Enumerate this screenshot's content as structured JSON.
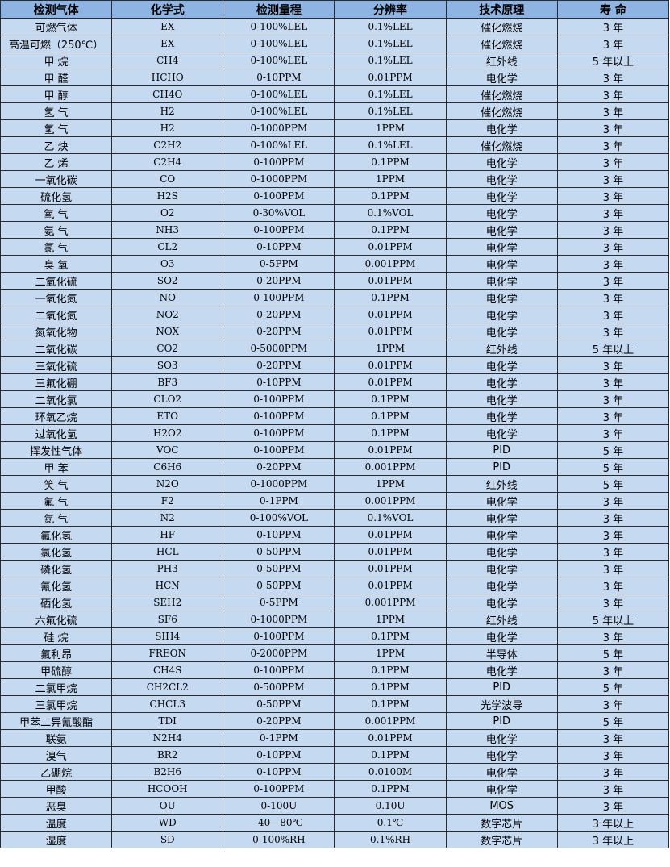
{
  "colors": {
    "header_bg": "#8db4e2",
    "cell_bg": "#c5d9f1",
    "border": "#2b2b2b"
  },
  "table": {
    "headers": [
      "检测气体",
      "化学式",
      "检测量程",
      "分辨率",
      "技术原理",
      "寿 命"
    ],
    "rows": [
      [
        "可燃气体",
        "EX",
        "0-100%LEL",
        "0.1%LEL",
        "催化燃烧",
        "3 年"
      ],
      [
        "高温可燃（250℃）",
        "EX",
        "0-100%LEL",
        "0.1%LEL",
        "催化燃烧",
        "3 年"
      ],
      [
        "甲 烷",
        "CH4",
        "0-100%LEL",
        "0.1%LEL",
        "红外线",
        "5 年以上"
      ],
      [
        "甲 醛",
        "HCHO",
        "0-10PPM",
        "0.01PPM",
        "电化学",
        "3 年"
      ],
      [
        "甲 醇",
        "CH4O",
        "0-100%LEL",
        "0.1%LEL",
        "催化燃烧",
        "3 年"
      ],
      [
        "氢 气",
        "H2",
        "0-100%LEL",
        "0.1%LEL",
        "催化燃烧",
        "3 年"
      ],
      [
        "氢 气",
        "H2",
        "0-1000PPM",
        "1PPM",
        "电化学",
        "3 年"
      ],
      [
        "乙 炔",
        "C2H2",
        "0-100%LEL",
        "0.1%LEL",
        "催化燃烧",
        "3 年"
      ],
      [
        "乙 烯",
        "C2H4",
        "0-100PPM",
        "0.1PPM",
        "电化学",
        "3 年"
      ],
      [
        "一氧化碳",
        "CO",
        "0-1000PPM",
        "1PPM",
        "电化学",
        "3 年"
      ],
      [
        "硫化氢",
        "H2S",
        "0-100PPM",
        "0.1PPM",
        "电化学",
        "3 年"
      ],
      [
        "氧 气",
        "O2",
        "0-30%VOL",
        "0.1%VOL",
        "电化学",
        "3 年"
      ],
      [
        "氨 气",
        "NH3",
        "0-100PPM",
        "0.1PPM",
        "电化学",
        "3 年"
      ],
      [
        "氯 气",
        "CL2",
        "0-10PPM",
        "0.01PPM",
        "电化学",
        "3 年"
      ],
      [
        "臭 氧",
        "O3",
        "0-5PPM",
        "0.001PPM",
        "电化学",
        "3 年"
      ],
      [
        "二氧化硫",
        "SO2",
        "0-20PPM",
        "0.01PPM",
        "电化学",
        "3 年"
      ],
      [
        "一氧化氮",
        "NO",
        "0-100PPM",
        "0.1PPM",
        "电化学",
        "3 年"
      ],
      [
        "二氧化氮",
        "NO2",
        "0-20PPM",
        "0.01PPM",
        "电化学",
        "3 年"
      ],
      [
        "氮氧化物",
        "NOX",
        "0-20PPM",
        "0.01PPM",
        "电化学",
        "3 年"
      ],
      [
        "二氧化碳",
        "CO2",
        "0-5000PPM",
        "1PPM",
        "红外线",
        "5 年以上"
      ],
      [
        "三氧化硫",
        "SO3",
        "0-20PPM",
        "0.01PPM",
        "电化学",
        "3 年"
      ],
      [
        "三氟化硼",
        "BF3",
        "0-10PPM",
        "0.01PPM",
        "电化学",
        "3 年"
      ],
      [
        "二氧化氯",
        "CLO2",
        "0-100PPM",
        "0.1PPM",
        "电化学",
        "3 年"
      ],
      [
        "环氧乙烷",
        "ETO",
        "0-100PPM",
        "0.1PPM",
        "电化学",
        "3 年"
      ],
      [
        "过氧化氢",
        "H2O2",
        "0-100PPM",
        "0.1PPM",
        "电化学",
        "3 年"
      ],
      [
        "挥发性气体",
        "VOC",
        "0-100PPM",
        "0.01PPM",
        "PID",
        "5 年"
      ],
      [
        "甲 苯",
        "C6H6",
        "0-20PPM",
        "0.001PPM",
        "PID",
        "5 年"
      ],
      [
        "笑 气",
        "N2O",
        "0-1000PPM",
        "1PPM",
        "红外线",
        "5 年"
      ],
      [
        "氟 气",
        "F2",
        "0-1PPM",
        "0.001PPM",
        "电化学",
        "3 年"
      ],
      [
        "氮 气",
        "N2",
        "0-100%VOL",
        "0.1%VOL",
        "电化学",
        "3 年"
      ],
      [
        "氟化氢",
        "HF",
        "0-10PPM",
        "0.01PPM",
        "电化学",
        "3 年"
      ],
      [
        "氯化氢",
        "HCL",
        "0-50PPM",
        "0.01PPM",
        "电化学",
        "3 年"
      ],
      [
        "磷化氢",
        "PH3",
        "0-50PPM",
        "0.01PPM",
        "电化学",
        "3 年"
      ],
      [
        "氰化氢",
        "HCN",
        "0-50PPM",
        "0.01PPM",
        "电化学",
        "3 年"
      ],
      [
        "硒化氢",
        "SEH2",
        "0-5PPM",
        "0.001PPM",
        "电化学",
        "3 年"
      ],
      [
        "六氟化硫",
        "SF6",
        "0-1000PPM",
        "1PPM",
        "红外线",
        "5 年以上"
      ],
      [
        "硅 烷",
        "SIH4",
        "0-100PPM",
        "0.1PPM",
        "电化学",
        "3 年"
      ],
      [
        "氟利昂",
        "FREON",
        "0-2000PPM",
        "1PPM",
        "半导体",
        "5 年"
      ],
      [
        "甲硫醇",
        "CH4S",
        "0-100PPM",
        "0.1PPM",
        "电化学",
        "3 年"
      ],
      [
        "二氯甲烷",
        "CH2CL2",
        "0-500PPM",
        "0.1PPM",
        "PID",
        "5 年"
      ],
      [
        "三氯甲烷",
        "CHCL3",
        "0-50PPM",
        "0.1PPM",
        "光学波导",
        "3 年"
      ],
      [
        "甲苯二异氰酸酯",
        "TDI",
        "0-20PPM",
        "0.001PPM",
        "PID",
        "5 年"
      ],
      [
        "联氨",
        "N2H4",
        "0-1PPM",
        "0.01PPM",
        "电化学",
        "3 年"
      ],
      [
        "溴气",
        "BR2",
        "0-10PPM",
        "0.1PPM",
        "电化学",
        "3 年"
      ],
      [
        "乙硼烷",
        "B2H6",
        "0-10PPM",
        "0.0100M",
        "电化学",
        "3 年"
      ],
      [
        "甲酸",
        "HCOOH",
        "0-100PPM",
        "0.1PPM",
        "电化学",
        "3 年"
      ],
      [
        "恶臭",
        "OU",
        "0-100U",
        "0.10U",
        "MOS",
        "3 年"
      ],
      [
        "温度",
        "WD",
        "-40—80℃",
        "0.1℃",
        "数字芯片",
        "3 年以上"
      ],
      [
        "湿度",
        "SD",
        "0-100%RH",
        "0.1%RH",
        "数字芯片",
        "3 年以上"
      ]
    ]
  }
}
